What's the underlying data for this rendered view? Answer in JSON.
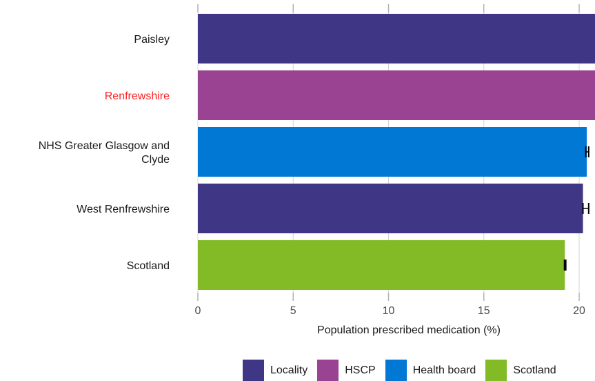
{
  "chart_data": {
    "type": "bar",
    "orientation": "horizontal",
    "xlabel": "Population prescribed medication (%)",
    "ylabel": "",
    "xlim": [
      0,
      20.8
    ],
    "xticks": [
      0,
      5,
      10,
      15,
      20
    ],
    "grid": true,
    "legend_position": "bottom",
    "legend": [
      {
        "label": "Locality",
        "color": "#3f3685"
      },
      {
        "label": "HSCP",
        "color": "#9b4393"
      },
      {
        "label": "Health board",
        "color": "#0078d4"
      },
      {
        "label": "Scotland",
        "color": "#83bb26"
      }
    ],
    "bars": [
      {
        "label": "Paisley",
        "value": 21.0,
        "group": "Locality",
        "label_color": "#1a1a1a"
      },
      {
        "label": "Renfrewshire",
        "value": 21.0,
        "group": "HSCP",
        "label_color": "#ff1f1f"
      },
      {
        "label": "NHS Greater Glasgow and Clyde",
        "value": 20.4,
        "group": "Health board",
        "error": [
          20.35,
          20.5
        ],
        "label_color": "#1a1a1a"
      },
      {
        "label": "West Renfrewshire",
        "value": 20.2,
        "group": "Locality",
        "error": [
          20.2,
          20.5
        ],
        "label_color": "#1a1a1a"
      },
      {
        "label": "Scotland",
        "value": 19.25,
        "group": "Scotland",
        "error": [
          19.23,
          19.3
        ],
        "label_color": "#1a1a1a"
      }
    ]
  }
}
